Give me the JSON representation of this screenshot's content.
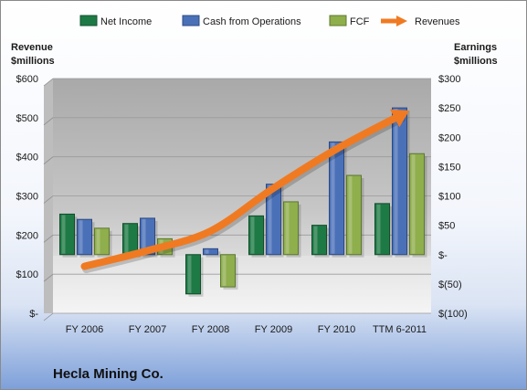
{
  "chart_data": {
    "type": "bar",
    "categories": [
      "FY 2006",
      "FY 2007",
      "FY 2008",
      "FY 2009",
      "FY 2010",
      "TTM 6-2011"
    ],
    "series": [
      {
        "name": "Net Income",
        "axis": "right",
        "color": "#1e7a45",
        "values": [
          69,
          53,
          -67,
          66,
          50,
          87
        ]
      },
      {
        "name": "Cash from Operations",
        "axis": "right",
        "color": "#4a70b8",
        "values": [
          60,
          62,
          10,
          120,
          192,
          250
        ]
      },
      {
        "name": "FCF",
        "axis": "right",
        "color": "#8fae4c",
        "values": [
          45,
          27,
          -55,
          90,
          135,
          172
        ]
      },
      {
        "name": "Revenues",
        "axis": "left",
        "type": "line",
        "color": "#f07a22",
        "values": [
          120,
          160,
          210,
          320,
          420,
          505
        ]
      }
    ],
    "y_left": {
      "label_line1": "Revenue",
      "label_line2": "$millions",
      "ylim": [
        0,
        600
      ],
      "ticks": [
        "$-",
        "$100",
        "$200",
        "$300",
        "$400",
        "$500",
        "$600"
      ]
    },
    "y_right": {
      "label_line1": "Earnings",
      "label_line2": "$millions",
      "ylim": [
        -100,
        300
      ],
      "ticks": [
        "$(100)",
        "$(50)",
        "$-",
        "$50",
        "$100",
        "$150",
        "$200",
        "$250",
        "$300"
      ]
    },
    "grid": true,
    "legend_position": "top",
    "company": "Hecla Mining Co."
  }
}
